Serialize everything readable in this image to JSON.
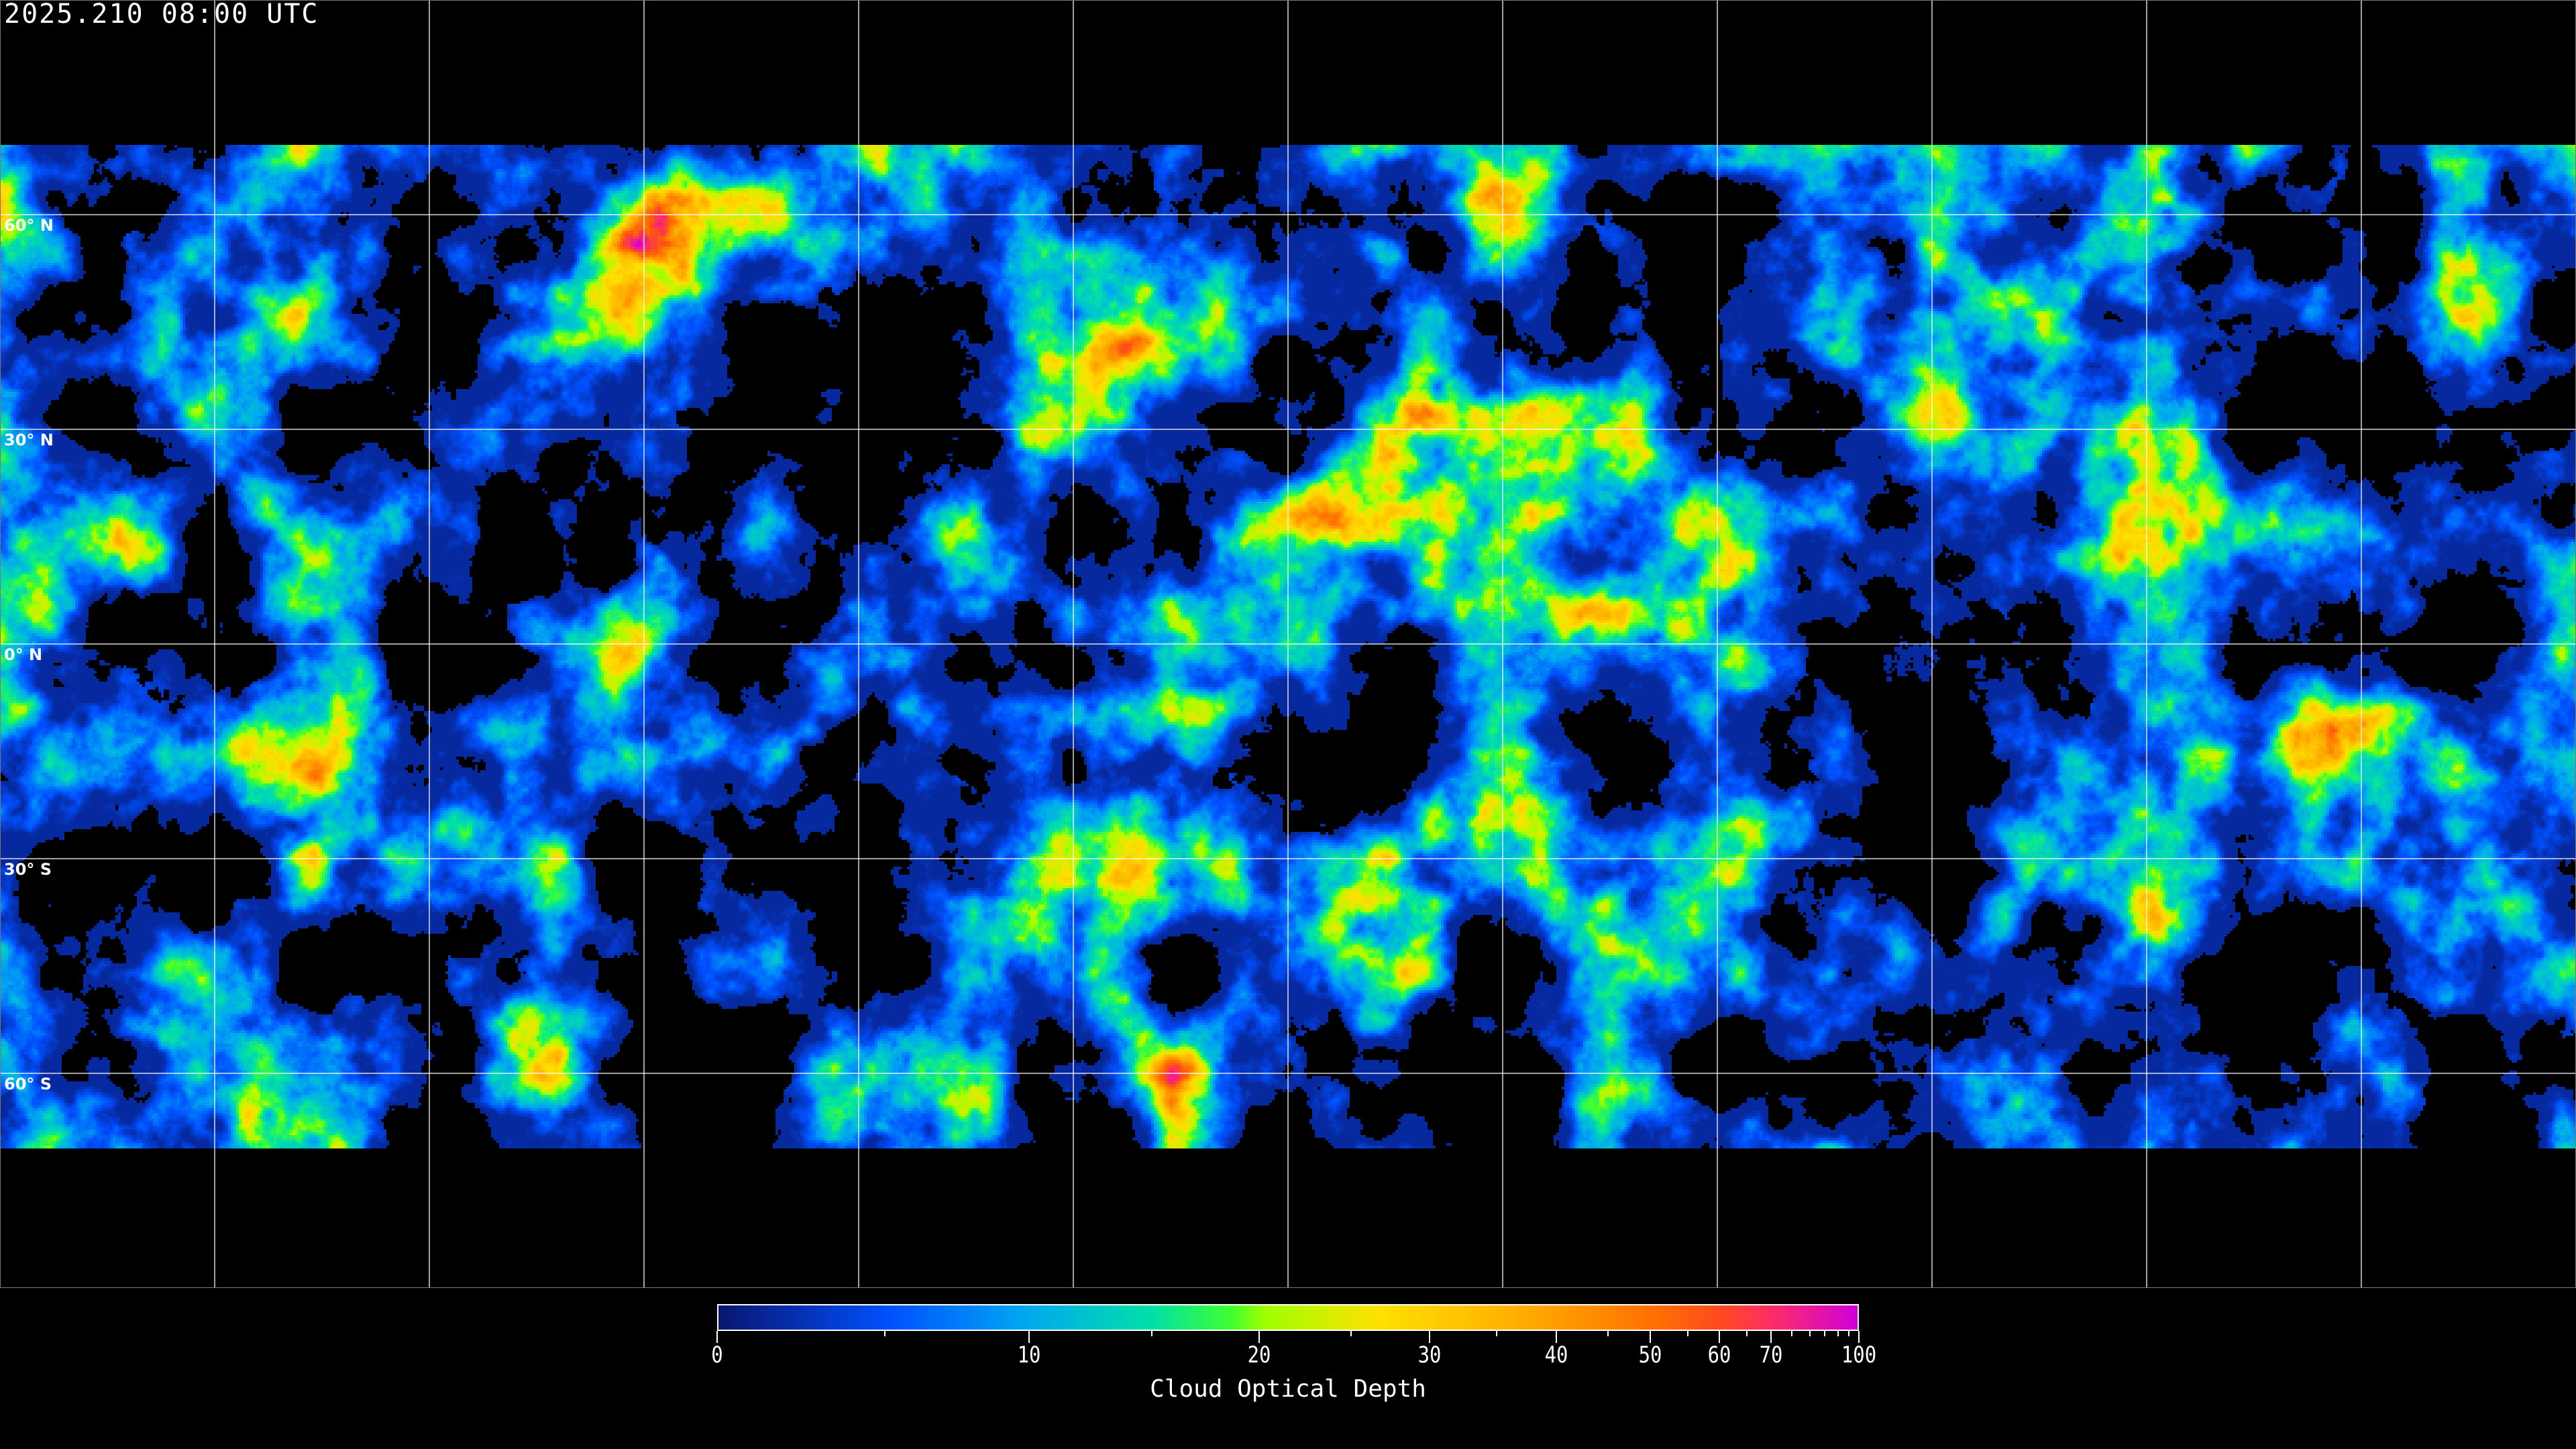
{
  "header": {
    "timestamp": "2025.210 08:00 UTC"
  },
  "map": {
    "projection": "equirectangular",
    "longitude_grid_step_deg": 30,
    "latitude_labels": [
      "60° N",
      "30° N",
      "0° N",
      "30° S",
      "60° S"
    ],
    "latitudes": [
      60,
      30,
      0,
      -30,
      -60
    ]
  },
  "colorbar": {
    "title": "Cloud Optical Depth",
    "tick_labels": [
      "0",
      "10",
      "20",
      "30",
      "40",
      "50",
      "60",
      "70",
      "100"
    ],
    "tick_values": [
      0,
      10,
      20,
      30,
      40,
      50,
      60,
      70,
      100
    ],
    "minor_tick_values": [
      5,
      15,
      25,
      35,
      45,
      55,
      65,
      75,
      80,
      85,
      90,
      95
    ],
    "range": [
      0,
      100
    ],
    "colors": [
      "#0a1670",
      "#0050ff",
      "#00a8f0",
      "#00e0a8",
      "#40ff30",
      "#a0ff00",
      "#ffe000",
      "#ffb000",
      "#ff7000",
      "#ff4a20",
      "#ff3060",
      "#d000d8"
    ]
  }
}
